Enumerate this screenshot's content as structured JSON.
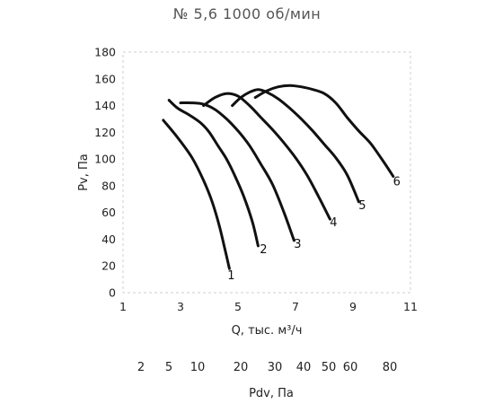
{
  "chart_data": {
    "type": "line",
    "title": "№ 5,6 1000 об/мин",
    "xlabel": "Q, тыс. м³/ч",
    "ylabel": "Pv, Па",
    "xlim": [
      1,
      11
    ],
    "ylim": [
      0,
      180
    ],
    "xticks": [
      1,
      3,
      5,
      7,
      9,
      11
    ],
    "yticks": [
      0,
      20,
      40,
      60,
      80,
      100,
      120,
      140,
      160,
      180
    ],
    "grid": false,
    "series": [
      {
        "name": "1",
        "x": [
          2.4,
          2.9,
          3.4,
          3.8,
          4.1,
          4.35,
          4.55,
          4.7
        ],
        "y": [
          129,
          116,
          101,
          84,
          68,
          50,
          32,
          18
        ]
      },
      {
        "name": "2",
        "x": [
          2.6,
          2.9,
          3.3,
          3.7,
          4.0,
          4.3,
          4.6,
          4.9,
          5.2,
          5.5,
          5.7
        ],
        "y": [
          144,
          138,
          133,
          127,
          120,
          110,
          100,
          87,
          72,
          53,
          35
        ]
      },
      {
        "name": "3",
        "x": [
          3.0,
          3.4,
          3.8,
          4.2,
          4.6,
          5.0,
          5.4,
          5.8,
          6.2,
          6.6,
          6.95
        ],
        "y": [
          142,
          142,
          141,
          137,
          130,
          121,
          110,
          96,
          81,
          60,
          39
        ]
      },
      {
        "name": "4",
        "x": [
          3.8,
          4.2,
          4.6,
          5.0,
          5.4,
          5.8,
          6.2,
          6.6,
          7.0,
          7.4,
          7.8,
          8.2
        ],
        "y": [
          140,
          146,
          149,
          147,
          140,
          131,
          122,
          112,
          101,
          88,
          72,
          55
        ]
      },
      {
        "name": "5",
        "x": [
          4.8,
          5.1,
          5.4,
          5.7,
          6.0,
          6.4,
          6.8,
          7.2,
          7.6,
          8.0,
          8.4,
          8.8,
          9.2
        ],
        "y": [
          140,
          146,
          150,
          152,
          150,
          145,
          138,
          130,
          121,
          111,
          101,
          88,
          68
        ]
      },
      {
        "name": "6",
        "x": [
          5.6,
          6.0,
          6.4,
          6.8,
          7.2,
          7.6,
          8.0,
          8.4,
          8.8,
          9.2,
          9.6,
          10.0,
          10.4
        ],
        "y": [
          146,
          151,
          154,
          155,
          154,
          152,
          149,
          142,
          131,
          121,
          112,
          100,
          87
        ]
      }
    ],
    "secondary_axis": {
      "label": "Pdv, Па",
      "ticks": [
        "2",
        "5",
        "10",
        "20",
        "30",
        "40",
        "50",
        "60",
        "80"
      ]
    }
  }
}
